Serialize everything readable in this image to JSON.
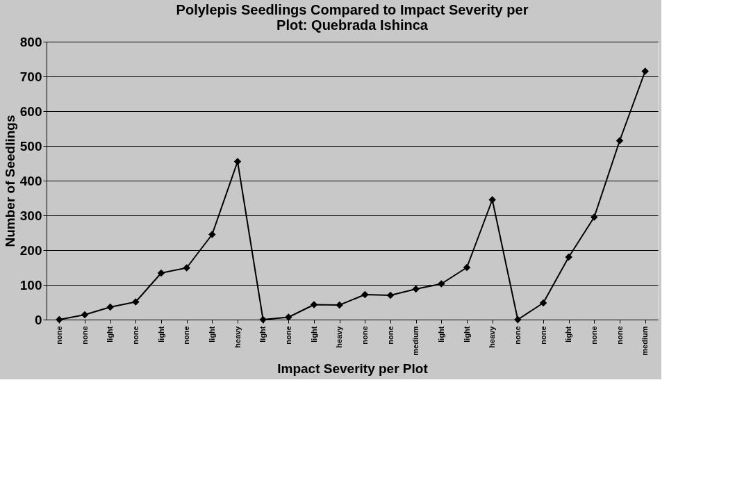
{
  "chart_data": {
    "type": "line",
    "title": [
      "Polylepis Seedlings Compared to Impact Severity per",
      "Plot: Quebrada Ishinca"
    ],
    "xlabel": "Impact Severity per Plot",
    "ylabel": "Number of Seedlings",
    "categories": [
      "none",
      "none",
      "light",
      "none",
      "light",
      "none",
      "light",
      "heavy",
      "light",
      "none",
      "light",
      "heavy",
      "none",
      "none",
      "medium",
      "light",
      "light",
      "heavy",
      "none",
      "none",
      "light",
      "none",
      "none",
      "medium"
    ],
    "series": [
      {
        "color": "#000000",
        "values": [
          0,
          14,
          36,
          51,
          134,
          149,
          245,
          455,
          0,
          7,
          43,
          42,
          72,
          70,
          88,
          103,
          150,
          345,
          0,
          48,
          180,
          295,
          515,
          715
        ]
      }
    ],
    "ylim": [
      0,
      800
    ],
    "yticks": [
      0,
      100,
      200,
      300,
      400,
      500,
      600,
      700,
      800
    ],
    "grid": "y",
    "marker": "diamond",
    "line_style": "solid",
    "legend": false
  }
}
